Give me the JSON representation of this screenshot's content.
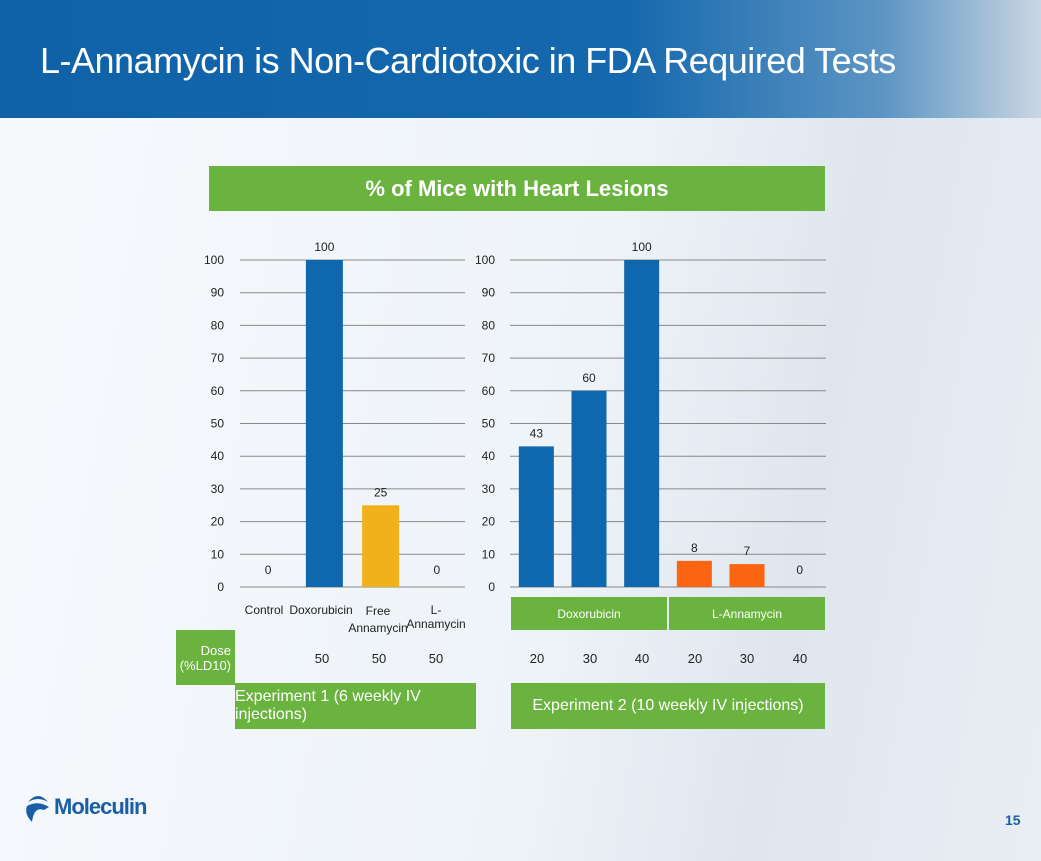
{
  "slide": {
    "title": "L-Annamycin is Non-Cardiotoxic in FDA Required Tests",
    "page_number": "15",
    "logo_text": "Moleculin"
  },
  "chart_data": [
    {
      "type": "bar",
      "title": "% of Mice with Heart Lesions",
      "categories": [
        "Control",
        "Doxorubicin",
        "Free Annamycin",
        "L-Annamycin"
      ],
      "values": [
        0,
        100,
        25,
        0
      ],
      "colors": [
        "#0f67ad",
        "#0f67ad",
        "#f0b21b",
        "#0f67ad"
      ],
      "ylim": [
        0,
        100
      ],
      "yticks": [
        0,
        10,
        20,
        30,
        40,
        50,
        60,
        70,
        80,
        90,
        100
      ],
      "grid": true,
      "dose_label": "Dose (%LD10)",
      "doses": [
        "",
        "50",
        "50",
        "50"
      ],
      "experiment": "Experiment 1 (6 weekly IV injections)"
    },
    {
      "type": "bar",
      "groups": [
        "Doxorubicin",
        "L-Annamycin"
      ],
      "categories": [
        "20",
        "30",
        "40",
        "20",
        "30",
        "40"
      ],
      "values": [
        43,
        60,
        100,
        8,
        7,
        0
      ],
      "colors": [
        "#0f67ad",
        "#0f67ad",
        "#0f67ad",
        "#fb6410",
        "#fb6410",
        "#fb6410"
      ],
      "ylim": [
        0,
        100
      ],
      "yticks": [
        0,
        10,
        20,
        30,
        40,
        50,
        60,
        70,
        80,
        90,
        100
      ],
      "grid": true,
      "experiment": "Experiment 2 (10 weekly IV injections)"
    }
  ],
  "colors": {
    "header": "#1568ad",
    "green": "#6ab33f",
    "doxorubicin": "#0f67ad",
    "free_annamycin": "#f0b21b",
    "l_annamycin": "#fb6410"
  }
}
